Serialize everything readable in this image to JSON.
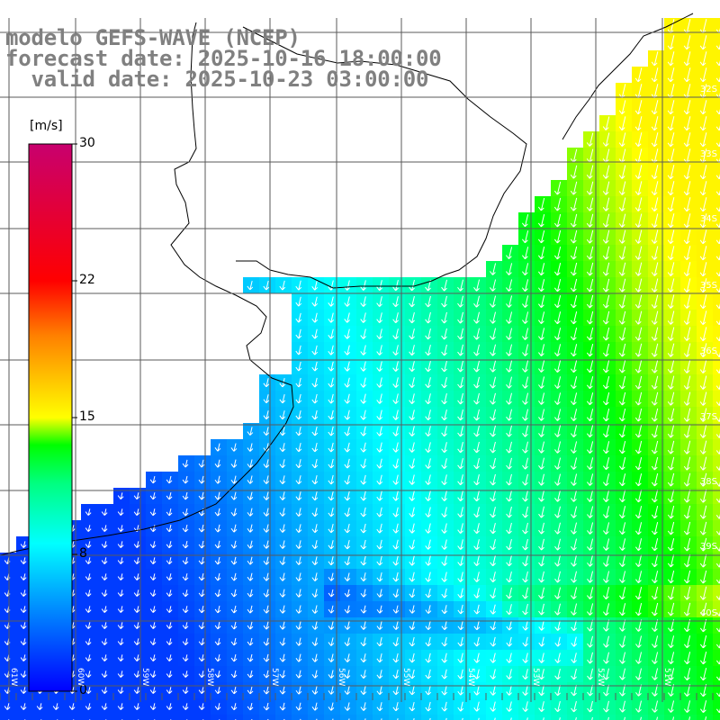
{
  "header": {
    "line1": "modelo GEFS-WAVE (NCEP)",
    "line2": "forecast date: 2025-10-16 18:00:00",
    "line3": "  valid date: 2025-10-23 03:00:00"
  },
  "colorbar": {
    "unit": "[m/s]",
    "ticks": [
      "30",
      "22",
      "15",
      "8",
      "0"
    ],
    "colors": [
      "#0000ff",
      "#0078ff",
      "#00ffff",
      "#00ff80",
      "#00ff00",
      "#aaff00",
      "#ffff00",
      "#ff8000",
      "#ff0000",
      "#c8006e"
    ]
  },
  "grid": {
    "lat_labels": [
      "32S",
      "33S",
      "34S",
      "35S",
      "36S",
      "37S",
      "38S",
      "39S",
      "40S"
    ],
    "lon_labels": [
      "61W",
      "60W",
      "59W",
      "58W",
      "57W",
      "56W",
      "55W",
      "54W",
      "53W",
      "52W",
      "51W"
    ]
  }
}
